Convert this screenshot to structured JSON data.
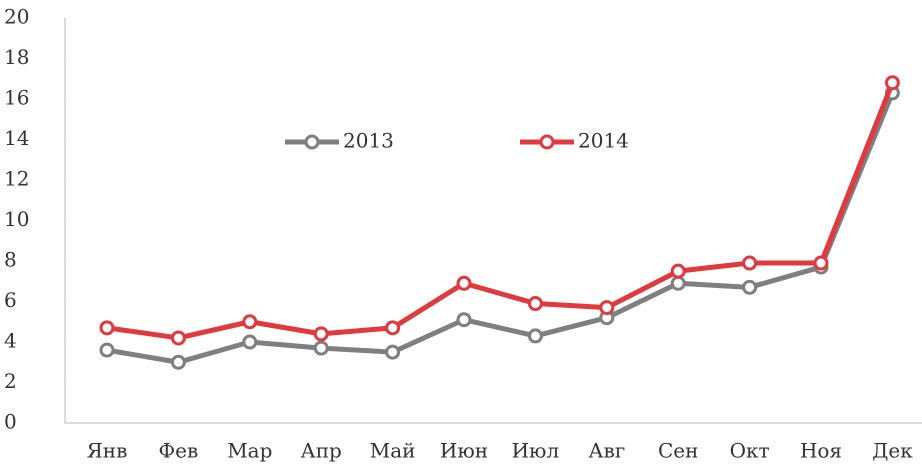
{
  "chart_data": {
    "type": "line",
    "categories": [
      "Янв",
      "Фев",
      "Мар",
      "Апр",
      "Май",
      "Июн",
      "Июл",
      "Авг",
      "Сен",
      "Окт",
      "Ноя",
      "Дек"
    ],
    "series": [
      {
        "name": "2013",
        "color": "#7f7f7f",
        "values": [
          3.6,
          3.0,
          4.0,
          3.7,
          3.5,
          5.1,
          4.3,
          5.2,
          6.9,
          6.7,
          7.7,
          16.3
        ]
      },
      {
        "name": "2014",
        "color": "#e0393e",
        "values": [
          4.7,
          4.2,
          5.0,
          4.4,
          4.7,
          6.9,
          5.9,
          5.7,
          7.5,
          7.9,
          7.9,
          16.8
        ]
      }
    ],
    "ylim": [
      0,
      20
    ],
    "yticks": [
      0,
      2,
      4,
      6,
      8,
      10,
      12,
      14,
      16,
      18,
      20
    ],
    "grid": false,
    "legend": "center"
  }
}
